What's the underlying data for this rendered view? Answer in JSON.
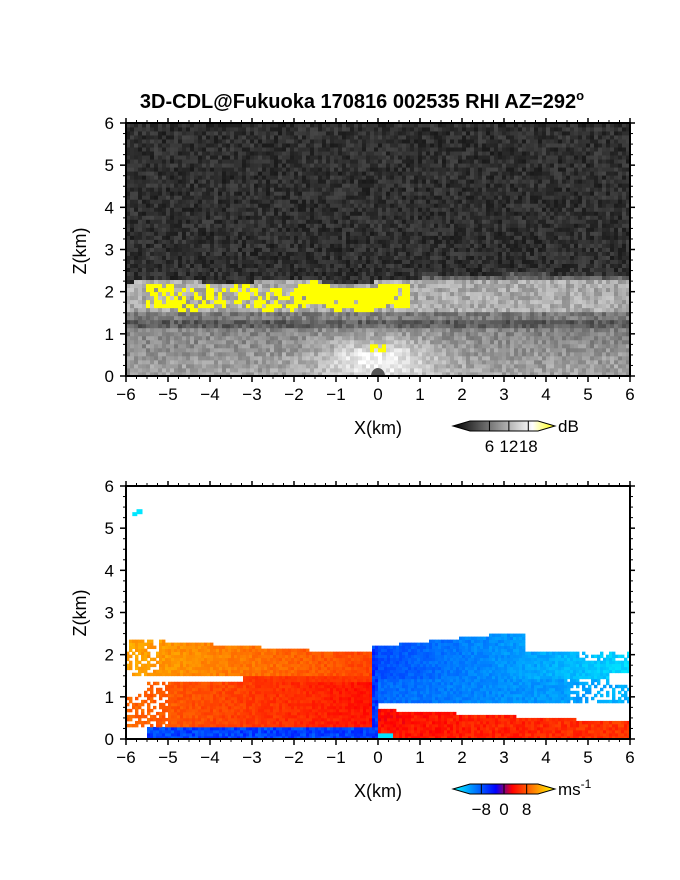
{
  "figure": {
    "title": "3D-CDL@Fukuoka 170816 002535 RHI AZ=292",
    "title_superscript": "o"
  },
  "chart_data": [
    {
      "type": "heatmap",
      "quantity": "signal intensity",
      "xlabel": "X(km)",
      "ylabel": "Z(km)",
      "xlim": [
        -6,
        6
      ],
      "ylim": [
        0,
        6
      ],
      "xticks": [
        -6,
        -5,
        -4,
        -3,
        -2,
        -1,
        0,
        1,
        2,
        3,
        4,
        5,
        6
      ],
      "yticks": [
        0,
        1,
        2,
        3,
        4,
        5,
        6
      ],
      "colorbar": {
        "unit": "dB",
        "ticks": [
          6,
          12,
          18
        ],
        "range": [
          0,
          21
        ],
        "colors": [
          "#000000",
          "#ffffff",
          "#ffff00"
        ]
      },
      "features": [
        {
          "layer": "noise background",
          "z_range": [
            2.3,
            6
          ],
          "level_db": 3
        },
        {
          "layer": "aerosol layer",
          "z_range": [
            0,
            2.3
          ],
          "level_db": 12
        },
        {
          "layer": "bright band",
          "x_range": [
            -5.5,
            0.8
          ],
          "z_range": [
            1.6,
            2.15
          ],
          "level_db": 19
        }
      ]
    },
    {
      "type": "heatmap",
      "quantity": "radial velocity",
      "xlabel": "X(km)",
      "ylabel": "Z(km)",
      "xlim": [
        -6,
        6
      ],
      "ylim": [
        0,
        6
      ],
      "xticks": [
        -6,
        -5,
        -4,
        -3,
        -2,
        -1,
        0,
        1,
        2,
        3,
        4,
        5,
        6
      ],
      "yticks": [
        0,
        1,
        2,
        3,
        4,
        5,
        6
      ],
      "colorbar": {
        "unit": "ms",
        "unit_superscript": "-1",
        "ticks": [
          -8,
          0,
          8
        ],
        "range": [
          -12,
          12
        ],
        "colors": [
          "#00ffff",
          "#0000ff",
          "#ff0000",
          "#ffff00"
        ]
      },
      "features": [
        {
          "region": "upper layer west",
          "x_range": [
            -5.9,
            0
          ],
          "z_range": [
            1.55,
            2.4
          ],
          "velocity": 6
        },
        {
          "region": "lower layer west",
          "x_range": [
            -6,
            0
          ],
          "z_range": [
            0.25,
            1.3
          ],
          "velocity": 3
        },
        {
          "region": "near-surface west",
          "x_range": [
            -5.5,
            0
          ],
          "z_range": [
            0,
            0.3
          ],
          "velocity": -6
        },
        {
          "region": "upper layer east",
          "x_range": [
            0,
            6
          ],
          "z_range": [
            1.4,
            2.5
          ],
          "velocity": -7
        },
        {
          "region": "lower layer east",
          "x_range": [
            0,
            6
          ],
          "z_range": [
            0,
            0.7
          ],
          "velocity": 4
        }
      ]
    }
  ]
}
